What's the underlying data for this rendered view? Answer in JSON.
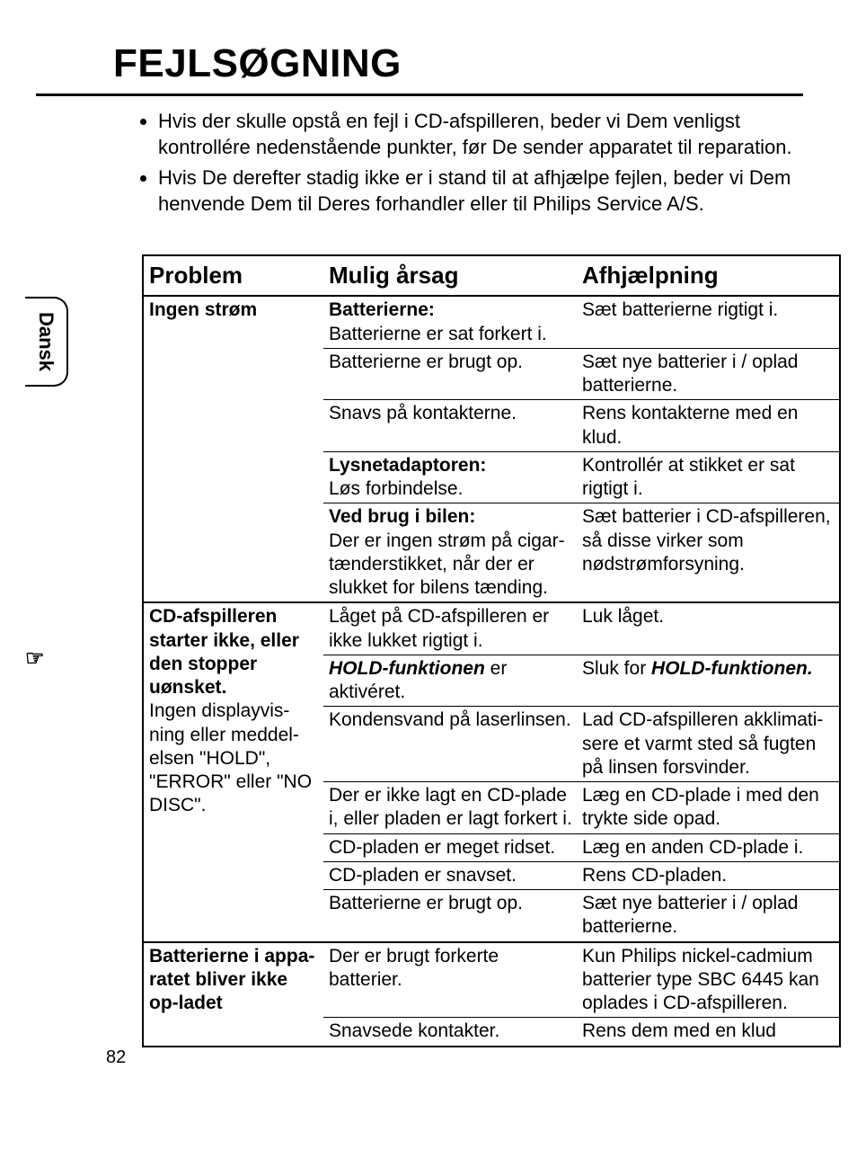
{
  "title": "FEJLSØGNING",
  "language_tab": "Dansk",
  "page_number": "82",
  "intro_bullets": [
    "Hvis der skulle opstå en fejl i CD-afspilleren, beder vi Dem venligst kontrollére nedenstående punkter, før De sender apparatet til reparation.",
    "Hvis De derefter stadig ikke er i stand til at afhjælpe fejlen, beder vi Dem henvende Dem til Deres forhandler eller til Philips Service A/S."
  ],
  "headers": {
    "c1": "Problem",
    "c2": "Mulig årsag",
    "c3": "Afhjælpning"
  },
  "sections": [
    {
      "problem": "Ingen strøm",
      "rows": [
        {
          "cause_header": "Batterierne:",
          "cause": "Batterierne er sat forkert i.",
          "remedy": "Sæt batterierne rigtigt i."
        },
        {
          "cause": "Batterierne er brugt op.",
          "remedy": "Sæt nye batterier i / oplad batterierne."
        },
        {
          "cause": "Snavs på kontakterne.",
          "remedy": "Rens kontakterne med en klud."
        },
        {
          "cause_header": "Lysnetadaptoren:",
          "cause": "Løs forbindelse.",
          "remedy": "Kontrollér at stikket er sat rigtigt i."
        },
        {
          "cause_header": "Ved brug i bilen:",
          "cause": "Der er ingen strøm på cigar-tænderstikket, når der er slukket for bilens tænding.",
          "remedy": "Sæt batterier i CD-afspilleren, så disse virker som nødstrømforsyning."
        }
      ]
    },
    {
      "problem": "CD-afspilleren starter ikke, eller den stopper uønsket.",
      "problem_extra": "Ingen displayvis-ning eller meddel-elsen \"HOLD\", \"ERROR\" eller \"NO DISC\".",
      "rows": [
        {
          "cause": "Låget på CD-afspilleren er ikke lukket rigtigt i.",
          "remedy": "Luk låget."
        },
        {
          "cause_html": "<span class='bold it'>HOLD-funktionen</span> er aktivéret.",
          "remedy_html": "Sluk for <span class='bold it'>HOLD-funktionen.</span>"
        },
        {
          "cause": "Kondensvand på laserlinsen.",
          "remedy": "Lad CD-afspilleren akklimati-sere et varmt sted så fugten på linsen forsvinder."
        },
        {
          "cause": "Der er ikke lagt en CD-plade i, eller pladen er lagt forkert i.",
          "remedy": "Læg en CD-plade i med den trykte side opad."
        },
        {
          "cause": "CD-pladen er meget ridset.",
          "remedy": "Læg en anden CD-plade i."
        },
        {
          "cause": "CD-pladen er snavset.",
          "remedy": "Rens CD-pladen."
        },
        {
          "cause": "Batterierne er brugt op.",
          "remedy": "Sæt nye batterier i / oplad batterierne."
        }
      ]
    },
    {
      "problem": "Batterierne i appa-ratet bliver ikke op-ladet",
      "rows": [
        {
          "cause": "Der er brugt forkerte batterier.",
          "remedy": "Kun Philips nickel-cadmium batterier type SBC 6445 kan oplades i CD-afspilleren."
        },
        {
          "cause": "Snavsede kontakter.",
          "remedy": "Rens dem med en klud"
        }
      ]
    }
  ]
}
